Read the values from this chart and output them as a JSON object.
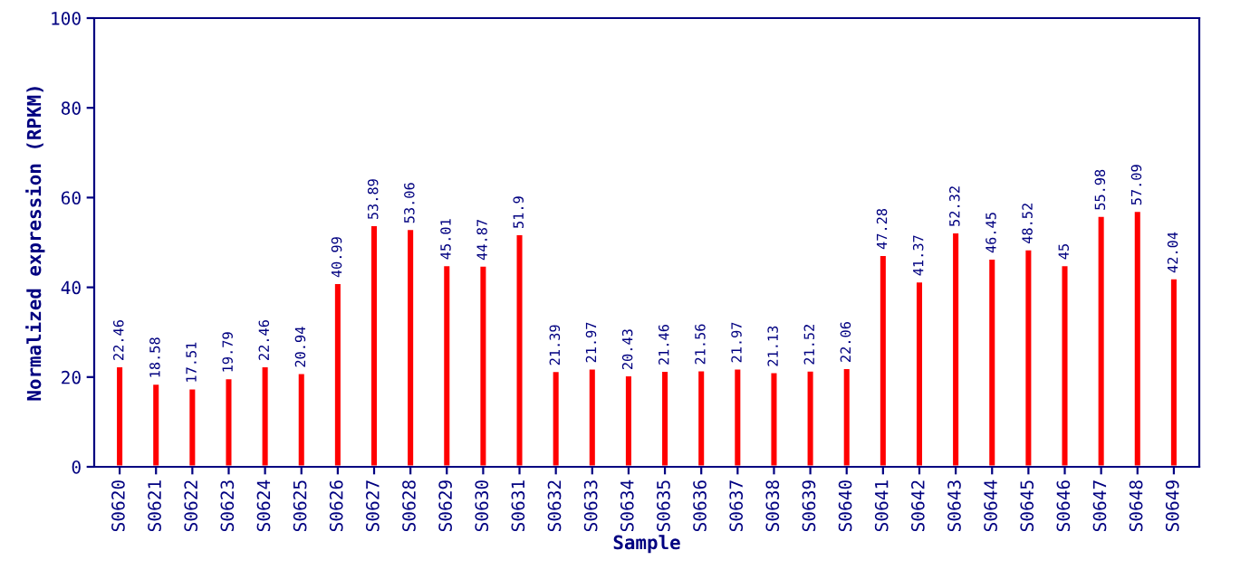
{
  "chart_data": {
    "type": "bar",
    "xlabel": "Sample",
    "ylabel": "Normalized expression (RPKM)",
    "categories": [
      "S0620",
      "S0621",
      "S0622",
      "S0623",
      "S0624",
      "S0625",
      "S0626",
      "S0627",
      "S0628",
      "S0629",
      "S0630",
      "S0631",
      "S0632",
      "S0633",
      "S0634",
      "S0635",
      "S0636",
      "S0637",
      "S0638",
      "S0639",
      "S0640",
      "S0641",
      "S0642",
      "S0643",
      "S0644",
      "S0645",
      "S0646",
      "S0647",
      "S0648",
      "S0649"
    ],
    "values": [
      22.46,
      18.58,
      17.51,
      19.79,
      22.46,
      20.94,
      40.99,
      53.89,
      53.06,
      45.01,
      44.87,
      51.9,
      21.39,
      21.97,
      20.43,
      21.46,
      21.56,
      21.97,
      21.13,
      21.52,
      22.06,
      47.28,
      41.37,
      52.32,
      46.45,
      48.52,
      45,
      55.98,
      57.09,
      42.04
    ],
    "color": "#ff0000",
    "ylim": [
      0,
      100
    ],
    "yticks": [
      0,
      20,
      40,
      60,
      80,
      100
    ],
    "grid": false,
    "data_labels": true
  }
}
